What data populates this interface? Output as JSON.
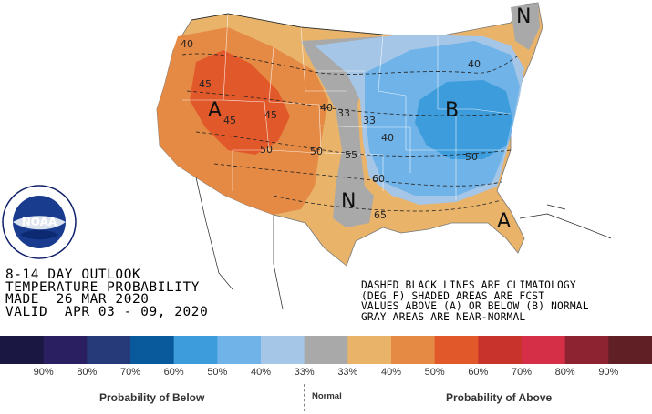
{
  "map": {
    "outlook_lines": [
      "8-14 DAY OUTLOOK",
      "TEMPERATURE PROBABILITY",
      "MADE  26 MAR 2020",
      "VALID  APR 03 - 09, 2020"
    ],
    "note_lines": [
      "DASHED BLACK LINES ARE CLIMATOLOGY",
      "(DEG F) SHADED AREAS ARE FCST",
      "VALUES ABOVE (A) OR BELOW (B) NORMAL",
      "GRAY AREAS ARE NEAR-NORMAL"
    ],
    "markers": [
      "A",
      "B",
      "N",
      "N",
      "A"
    ],
    "contour_labels": [
      "40",
      "45",
      "45",
      "45",
      "50",
      "40",
      "33",
      "33",
      "40",
      "50",
      "55",
      "60",
      "65",
      "40",
      "50"
    ],
    "logo_text": "NOAA"
  },
  "legend": {
    "colors": [
      "#1b1743",
      "#2a1f60",
      "#263a7a",
      "#095a9d",
      "#3c9cdc",
      "#6fb3e8",
      "#a5c6e7",
      "#a9a9a9",
      "#e9b36a",
      "#e48a44",
      "#e1592b",
      "#c8332b",
      "#d42f47",
      "#8d2331",
      "#5f1f24"
    ],
    "percentages": [
      "90%",
      "80%",
      "70%",
      "60%",
      "50%",
      "40%",
      "33%",
      "33%",
      "40%",
      "50%",
      "60%",
      "70%",
      "80%",
      "90%"
    ],
    "below_label": "Probability of Below",
    "normal_label": "Normal",
    "above_label": "Probability of Above"
  }
}
